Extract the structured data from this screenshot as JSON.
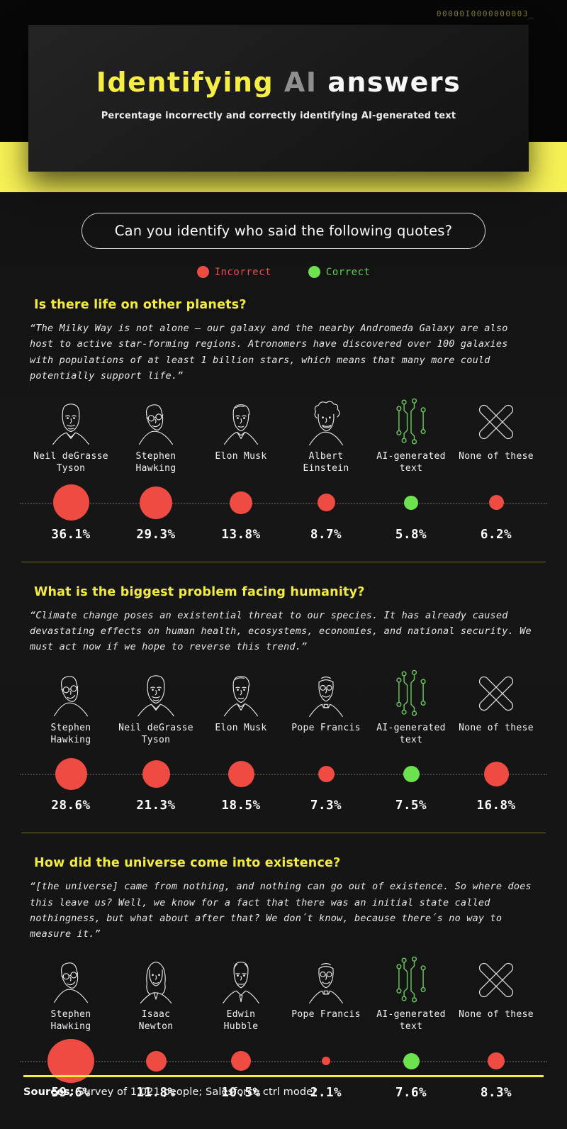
{
  "header": {
    "binary": "00000I0000000003_",
    "title": {
      "yellow": "Identifying",
      "gray": "AI",
      "white": "answers"
    },
    "subtitle": "Percentage incorrectly and correctly identifying AI-generated text"
  },
  "prompt_pill": "Can you identify who said the following quotes?",
  "legend": {
    "incorrect": "Incorrect",
    "correct": "Correct"
  },
  "colors": {
    "red": "#ee4b43",
    "green": "#6ce24f",
    "yellow": "#f2ec3f",
    "band_yellow": "#f6f155",
    "icon_green": "#69c75a"
  },
  "sections": [
    {
      "question": "Is there life on other planets?",
      "quote": "“The Milky Way is not alone – our galaxy and the nearby Andromeda Galaxy are also host to active star-forming regions. Atronomers have discovered over 100 galaxies with populations of at least 1 billion stars, which means that many more could potentially support life.”",
      "options": [
        {
          "label": "Neil deGrasse\nTyson",
          "icon": "portrait-neil-degrasse-tyson",
          "value": "36.1%",
          "pct": 36.1,
          "correct": false
        },
        {
          "label": "Stephen\nHawking",
          "icon": "portrait-stephen-hawking",
          "value": "29.3%",
          "pct": 29.3,
          "correct": false
        },
        {
          "label": "Elon Musk",
          "icon": "portrait-elon-musk",
          "value": "13.8%",
          "pct": 13.8,
          "correct": false
        },
        {
          "label": "Albert\nEinstein",
          "icon": "portrait-albert-einstein",
          "value": "8.7%",
          "pct": 8.7,
          "correct": false
        },
        {
          "label": "AI-generated\ntext",
          "icon": "ai-circuit-icon",
          "value": "5.8%",
          "pct": 5.8,
          "correct": true
        },
        {
          "label": "None of these",
          "icon": "none-x-icon",
          "value": "6.2%",
          "pct": 6.2,
          "correct": false
        }
      ]
    },
    {
      "question": "What is the biggest problem facing humanity?",
      "quote": "“Climate change poses an existential threat to our species. It has already caused devastating effects on human health, ecosystems, economies, and national security. We must act now if we hope to reverse this trend.”",
      "options": [
        {
          "label": "Stephen\nHawking",
          "icon": "portrait-stephen-hawking",
          "value": "28.6%",
          "pct": 28.6,
          "correct": false
        },
        {
          "label": "Neil deGrasse\nTyson",
          "icon": "portrait-neil-degrasse-tyson",
          "value": "21.3%",
          "pct": 21.3,
          "correct": false
        },
        {
          "label": "Elon Musk",
          "icon": "portrait-elon-musk",
          "value": "18.5%",
          "pct": 18.5,
          "correct": false
        },
        {
          "label": "Pope Francis",
          "icon": "portrait-pope-francis",
          "value": "7.3%",
          "pct": 7.3,
          "correct": false
        },
        {
          "label": "AI-generated\ntext",
          "icon": "ai-circuit-icon",
          "value": "7.5%",
          "pct": 7.5,
          "correct": true
        },
        {
          "label": "None of these",
          "icon": "none-x-icon",
          "value": "16.8%",
          "pct": 16.8,
          "correct": false
        }
      ]
    },
    {
      "question": "How did the universe come into existence?",
      "quote": "“[the universe] came from nothing, and nothing can go out of existence. So where does this leave us? Well, we know for a fact that there was an initial state called nothingness, but what about after that? We don´t know, because there´s no way to measure it.”",
      "options": [
        {
          "label": "Stephen\nHawking",
          "icon": "portrait-stephen-hawking",
          "value": "59.6%",
          "pct": 59.6,
          "correct": false
        },
        {
          "label": "Isaac\nNewton",
          "icon": "portrait-isaac-newton",
          "value": "11.8%",
          "pct": 11.8,
          "correct": false
        },
        {
          "label": "Edwin\nHubble",
          "icon": "portrait-edwin-hubble",
          "value": "10.5%",
          "pct": 10.5,
          "correct": false
        },
        {
          "label": "Pope Francis",
          "icon": "portrait-pope-francis",
          "value": "2.1%",
          "pct": 2.1,
          "correct": false
        },
        {
          "label": "AI-generated\ntext",
          "icon": "ai-circuit-icon",
          "value": "7.6%",
          "pct": 7.6,
          "correct": true
        },
        {
          "label": "None of these",
          "icon": "none-x-icon",
          "value": "8.3%",
          "pct": 8.3,
          "correct": false
        }
      ]
    }
  ],
  "footer": {
    "label": "Sources:",
    "text": " Survey of 1,021 people; Salesforce ctrl model"
  },
  "chart_data": [
    {
      "type": "bar",
      "variant": "proportional-bubbles",
      "title": "Is there life on other planets?",
      "categories": [
        "Neil deGrasse Tyson",
        "Stephen Hawking",
        "Elon Musk",
        "Albert Einstein",
        "AI-generated text",
        "None of these"
      ],
      "values": [
        36.1,
        29.3,
        13.8,
        8.7,
        5.8,
        6.2
      ],
      "unit": "%",
      "correct_category": "AI-generated text",
      "legend": [
        "Incorrect",
        "Correct"
      ],
      "legend_position": "top"
    },
    {
      "type": "bar",
      "variant": "proportional-bubbles",
      "title": "What is the biggest problem facing humanity?",
      "categories": [
        "Stephen Hawking",
        "Neil deGrasse Tyson",
        "Elon Musk",
        "Pope Francis",
        "AI-generated text",
        "None of these"
      ],
      "values": [
        28.6,
        21.3,
        18.5,
        7.3,
        7.5,
        16.8
      ],
      "unit": "%",
      "correct_category": "AI-generated text",
      "legend": [
        "Incorrect",
        "Correct"
      ],
      "legend_position": "top"
    },
    {
      "type": "bar",
      "variant": "proportional-bubbles",
      "title": "How did the universe come into existence?",
      "categories": [
        "Stephen Hawking",
        "Isaac Newton",
        "Edwin Hubble",
        "Pope Francis",
        "AI-generated text",
        "None of these"
      ],
      "values": [
        59.6,
        11.8,
        10.5,
        2.1,
        7.6,
        8.3
      ],
      "unit": "%",
      "correct_category": "AI-generated text",
      "legend": [
        "Incorrect",
        "Correct"
      ],
      "legend_position": "top"
    }
  ]
}
